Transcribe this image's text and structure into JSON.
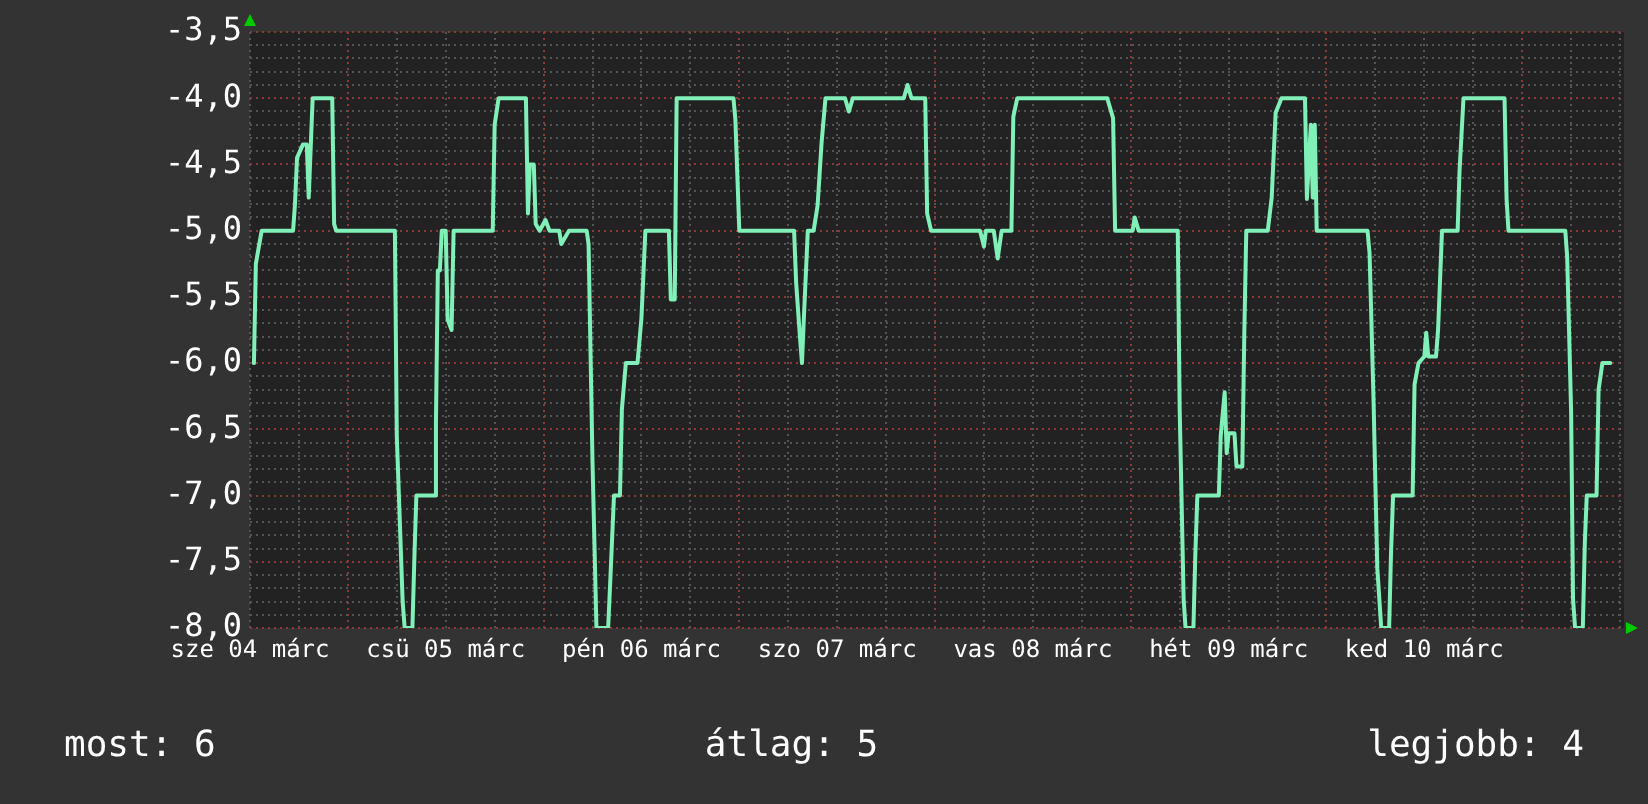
{
  "chart_data": {
    "type": "line",
    "annotations": [
      "most: 6",
      "átlag: 5",
      "legjobb: 4"
    ],
    "series": [
      {
        "color": "#80f0b8",
        "x": [
          "--03-04T12:29",
          "--03-04T12:43",
          "--03-04T13:26",
          "--03-04T17:17",
          "--03-04T17:31",
          "--03-04T17:46",
          "--03-04T18:29",
          "--03-04T18:58",
          "--03-04T19:12",
          "--03-04T19:41",
          "--03-04T22:05",
          "--03-04T22:19",
          "--03-04T22:34",
          "--03-05T05:46",
          "--03-05T06:00",
          "--03-05T06:43",
          "--03-05T06:58",
          "--03-05T07:55",
          "--03-05T08:10",
          "--03-05T08:24",
          "--03-05T10:34",
          "--03-05T10:48",
          "--03-05T11:02",
          "--03-05T11:17",
          "--03-05T11:31",
          "--03-05T12:00",
          "--03-05T12:14",
          "--03-05T12:43",
          "--03-05T12:58",
          "--03-05T17:46",
          "--03-05T18:00",
          "--03-05T18:29",
          "--03-05T21:50",
          "--03-05T22:05",
          "--03-05T22:19",
          "--03-05T22:48",
          "--03-05T23:02",
          "--03-05T23:31",
          "--03-06T00:14",
          "--03-06T00:43",
          "--03-06T01:55",
          "--03-06T02:10",
          "--03-06T03:07",
          "--03-06T05:17",
          "--03-06T05:31",
          "--03-06T06:00",
          "--03-06T06:29",
          "--03-06T07:55",
          "--03-06T08:10",
          "--03-06T08:38",
          "--03-06T09:22",
          "--03-06T09:36",
          "--03-06T10:05",
          "--03-06T11:31",
          "--03-06T12:00",
          "--03-06T12:29",
          "--03-06T15:22",
          "--03-06T15:36",
          "--03-06T16:05",
          "--03-06T16:19",
          "--03-06T23:17",
          "--03-06T23:31",
          "--03-07T00:00",
          "--03-07T06:43",
          "--03-07T06:58",
          "--03-07T07:26",
          "--03-07T07:41",
          "--03-07T07:55",
          "--03-07T08:24",
          "--03-07T09:07",
          "--03-07T09:36",
          "--03-07T10:05",
          "--03-07T10:34",
          "--03-07T12:58",
          "--03-07T13:26",
          "--03-07T13:55",
          "--03-07T20:10",
          "--03-07T20:38",
          "--03-07T21:07",
          "--03-07T22:48",
          "--03-07T23:02",
          "--03-07T23:31",
          "--03-08T05:31",
          "--03-08T06:00",
          "--03-08T06:14",
          "--03-08T07:12",
          "--03-08T07:41",
          "--03-08T08:10",
          "--03-08T09:22",
          "--03-08T09:36",
          "--03-08T10:05",
          "--03-08T21:07",
          "--03-08T21:50",
          "--03-08T22:05",
          "--03-09T00:14",
          "--03-09T00:29",
          "--03-09T00:58",
          "--03-09T05:46",
          "--03-09T06:00",
          "--03-09T06:29",
          "--03-09T06:43",
          "--03-09T07:41",
          "--03-09T07:55",
          "--03-09T08:10",
          "--03-09T10:48",
          "--03-09T11:02",
          "--03-09T11:31",
          "--03-09T11:46",
          "--03-09T12:00",
          "--03-09T12:43",
          "--03-09T12:58",
          "--03-09T13:41",
          "--03-09T13:55",
          "--03-09T14:10",
          "--03-09T16:48",
          "--03-09T17:17",
          "--03-09T17:46",
          "--03-09T18:29",
          "--03-09T21:22",
          "--03-09T21:36",
          "--03-09T22:05",
          "--03-09T22:19",
          "--03-09T22:34",
          "--03-09T22:48",
          "--03-10T05:02",
          "--03-10T05:17",
          "--03-10T05:46",
          "--03-10T06:14",
          "--03-10T06:43",
          "--03-10T07:41",
          "--03-10T07:55",
          "--03-10T08:10",
          "--03-10T10:34",
          "--03-10T10:48",
          "--03-10T11:17",
          "--03-10T12:00",
          "--03-10T12:14",
          "--03-10T12:29",
          "--03-10T13:26",
          "--03-10T13:41",
          "--03-10T14:10",
          "--03-10T16:05",
          "--03-10T16:19",
          "--03-10T16:48",
          "--03-10T21:50",
          "--03-10T22:05",
          "--03-10T22:19",
          "--03-11T05:17",
          "--03-11T05:31",
          "--03-11T06:00",
          "--03-11T06:14",
          "--03-11T06:29",
          "--03-11T07:26",
          "--03-11T07:41",
          "--03-11T07:55",
          "--03-11T09:07",
          "--03-11T09:22",
          "--03-11T09:50",
          "--03-11T10:48"
        ],
        "values": [
          -6.0,
          -5.25,
          -5.0,
          -5.0,
          -4.8,
          -4.45,
          -4.35,
          -4.35,
          -4.75,
          -4.0,
          -4.0,
          -4.95,
          -5.0,
          -5.0,
          -6.55,
          -7.8,
          -8.0,
          -8.0,
          -7.45,
          -7.0,
          -7.0,
          -6.45,
          -5.3,
          -5.3,
          -5.0,
          -5.0,
          -5.67,
          -5.75,
          -5.0,
          -5.0,
          -4.2,
          -4.0,
          -4.0,
          -4.87,
          -4.5,
          -4.5,
          -4.95,
          -5.0,
          -4.92,
          -5.0,
          -5.0,
          -5.1,
          -5.0,
          -5.0,
          -5.1,
          -6.75,
          -8.0,
          -8.0,
          -7.66,
          -7.0,
          -7.0,
          -6.35,
          -6.0,
          -6.0,
          -5.66,
          -5.0,
          -5.0,
          -5.52,
          -5.52,
          -4.0,
          -4.0,
          -4.16,
          -5.0,
          -5.0,
          -5.39,
          -5.8,
          -6.0,
          -5.66,
          -5.0,
          -5.0,
          -4.81,
          -4.34,
          -4.0,
          -4.0,
          -4.1,
          -4.0,
          -4.0,
          -3.9,
          -4.0,
          -4.0,
          -4.87,
          -5.0,
          -5.0,
          -5.12,
          -5.0,
          -5.0,
          -5.21,
          -5.0,
          -5.0,
          -4.14,
          -4.0,
          -4.0,
          -4.15,
          -5.0,
          -5.0,
          -4.9,
          -5.0,
          -5.0,
          -6.35,
          -7.78,
          -8.0,
          -8.0,
          -7.45,
          -7.0,
          -7.0,
          -6.55,
          -6.22,
          -6.68,
          -6.53,
          -6.53,
          -6.78,
          -6.78,
          -5.8,
          -5.0,
          -5.0,
          -4.75,
          -4.11,
          -4.0,
          -4.0,
          -4.76,
          -4.2,
          -4.75,
          -4.2,
          -5.0,
          -5.0,
          -5.17,
          -6.27,
          -7.55,
          -8.0,
          -8.0,
          -7.43,
          -7.0,
          -7.0,
          -6.16,
          -6.0,
          -5.95,
          -5.77,
          -5.95,
          -5.95,
          -5.75,
          -5.0,
          -5.0,
          -4.55,
          -4.0,
          -4.0,
          -4.76,
          -5.0,
          -5.0,
          -5.2,
          -6.37,
          -7.78,
          -8.0,
          -8.0,
          -7.35,
          -7.0,
          -7.0,
          -6.2,
          -6.0,
          -6.0
        ]
      }
    ],
    "xlim": [
      "--03-04T12:00",
      "--03-11T12:29"
    ],
    "xticks": [
      {
        "value": "--03-04T12:00",
        "label": "sze 04 márc"
      },
      {
        "value": "--03-04T18:00",
        "label": null
      },
      {
        "value": "--03-05T00:00",
        "label": null
      },
      {
        "value": "--03-05T06:00",
        "label": null
      },
      {
        "value": "--03-05T12:00",
        "label": "csü 05 márc"
      },
      {
        "value": "--03-05T18:00",
        "label": null
      },
      {
        "value": "--03-06T00:00",
        "label": null
      },
      {
        "value": "--03-06T06:00",
        "label": null
      },
      {
        "value": "--03-06T12:00",
        "label": "pén 06 márc"
      },
      {
        "value": "--03-06T18:00",
        "label": null
      },
      {
        "value": "--03-07T00:00",
        "label": null
      },
      {
        "value": "--03-07T06:00",
        "label": null
      },
      {
        "value": "--03-07T12:00",
        "label": "szo 07 márc"
      },
      {
        "value": "--03-07T18:00",
        "label": null
      },
      {
        "value": "--03-08T00:00",
        "label": null
      },
      {
        "value": "--03-08T06:00",
        "label": null
      },
      {
        "value": "--03-08T12:00",
        "label": "vas 08 márc"
      },
      {
        "value": "--03-08T18:00",
        "label": null
      },
      {
        "value": "--03-09T00:00",
        "label": null
      },
      {
        "value": "--03-09T06:00",
        "label": null
      },
      {
        "value": "--03-09T12:00",
        "label": "hét 09 márc"
      },
      {
        "value": "--03-09T18:00",
        "label": null
      },
      {
        "value": "--03-10T00:00",
        "label": null
      },
      {
        "value": "--03-10T06:00",
        "label": null
      },
      {
        "value": "--03-10T12:00",
        "label": "ked 10 márc"
      },
      {
        "value": "--03-10T18:00",
        "label": null
      },
      {
        "value": "--03-11T00:00",
        "label": null
      },
      {
        "value": "--03-11T06:00",
        "label": null
      },
      {
        "value": "--03-11T12:00",
        "label": null
      }
    ],
    "ylim": [
      -8.0,
      -3.5
    ],
    "yticks": [
      {
        "value": -8.0,
        "label": "-8,0"
      },
      {
        "value": -7.9,
        "label": null
      },
      {
        "value": -7.8,
        "label": null
      },
      {
        "value": -7.7,
        "label": null
      },
      {
        "value": -7.6,
        "label": null
      },
      {
        "value": -7.5,
        "label": "-7,5"
      },
      {
        "value": -7.4,
        "label": null
      },
      {
        "value": -7.3,
        "label": null
      },
      {
        "value": -7.2,
        "label": null
      },
      {
        "value": -7.1,
        "label": null
      },
      {
        "value": -7.0,
        "label": "-7,0"
      },
      {
        "value": -6.9,
        "label": null
      },
      {
        "value": -6.8,
        "label": null
      },
      {
        "value": -6.7,
        "label": null
      },
      {
        "value": -6.6,
        "label": null
      },
      {
        "value": -6.5,
        "label": "-6,5"
      },
      {
        "value": -6.4,
        "label": null
      },
      {
        "value": -6.3,
        "label": null
      },
      {
        "value": -6.2,
        "label": null
      },
      {
        "value": -6.1,
        "label": null
      },
      {
        "value": -6.0,
        "label": "-6,0"
      },
      {
        "value": -5.9,
        "label": null
      },
      {
        "value": -5.8,
        "label": null
      },
      {
        "value": -5.7,
        "label": null
      },
      {
        "value": -5.6,
        "label": null
      },
      {
        "value": -5.5,
        "label": "-5,5"
      },
      {
        "value": -5.4,
        "label": null
      },
      {
        "value": -5.3,
        "label": null
      },
      {
        "value": -5.2,
        "label": null
      },
      {
        "value": -5.1,
        "label": null
      },
      {
        "value": -5.0,
        "label": "-5,0"
      },
      {
        "value": -4.9,
        "label": null
      },
      {
        "value": -4.8,
        "label": null
      },
      {
        "value": -4.7,
        "label": null
      },
      {
        "value": -4.6,
        "label": null
      },
      {
        "value": -4.5,
        "label": "-4,5"
      },
      {
        "value": -4.4,
        "label": null
      },
      {
        "value": -4.3,
        "label": null
      },
      {
        "value": -4.2,
        "label": null
      },
      {
        "value": -4.1,
        "label": null
      },
      {
        "value": -4.0,
        "label": "-4,0"
      },
      {
        "value": -3.9,
        "label": null
      },
      {
        "value": -3.8,
        "label": null
      },
      {
        "value": -3.7,
        "label": null
      },
      {
        "value": -3.6,
        "label": null
      },
      {
        "value": -3.5,
        "label": "-3,5"
      }
    ],
    "grid": true,
    "legend": false,
    "marker": "none",
    "line_style": "solid"
  }
}
